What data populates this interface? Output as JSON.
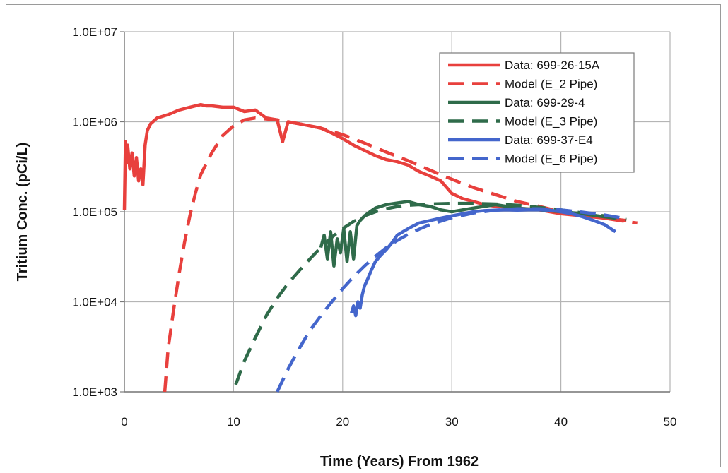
{
  "chart_data": {
    "type": "line",
    "xlabel": "Time (Years)  From 1962",
    "ylabel": "Tritium Conc. (pCi/L)",
    "xlim": [
      0,
      50
    ],
    "ylim": [
      1000,
      10000000
    ],
    "yscale": "log",
    "x_ticks": [
      0,
      10,
      20,
      30,
      40,
      50
    ],
    "x_tick_labels": [
      "0",
      "10",
      "20",
      "30",
      "40",
      "50"
    ],
    "y_ticks": [
      1000,
      10000,
      100000,
      1000000,
      10000000
    ],
    "y_tick_labels": [
      "1.0E+03",
      "1.0E+04",
      "1.0E+05",
      "1.0E+06",
      "1.0E+07"
    ],
    "grid": true,
    "legend_position": "top-right",
    "series": [
      {
        "name": "Data: 699-26-15A",
        "color": "#e8403d",
        "style": "solid",
        "x": [
          0,
          0.1,
          0.2,
          0.3,
          0.5,
          0.7,
          0.9,
          1.1,
          1.3,
          1.5,
          1.7,
          1.9,
          2.1,
          2.4,
          3.0,
          4.0,
          5.0,
          6.0,
          7.0,
          7.5,
          8.0,
          9.0,
          10.0,
          11.0,
          12.0,
          13.0,
          14.0,
          14.5,
          15.0,
          16.0,
          17.0,
          18.0,
          19.0,
          20.0,
          21.0,
          22.0,
          23.0,
          24.0,
          25.0,
          26.0,
          27.0,
          28.0,
          29.0,
          30.0,
          31.0,
          32.0,
          33.0,
          34.0,
          36.0,
          38.0,
          40.0,
          42.0,
          44.0,
          46.0
        ],
        "y": [
          105000,
          600000,
          350000,
          550000,
          300000,
          450000,
          250000,
          400000,
          220000,
          300000,
          200000,
          550000,
          800000,
          950000,
          1100000,
          1200000,
          1350000,
          1450000,
          1550000,
          1500000,
          1500000,
          1450000,
          1450000,
          1300000,
          1350000,
          1100000,
          1050000,
          600000,
          1000000,
          950000,
          900000,
          850000,
          750000,
          650000,
          550000,
          480000,
          420000,
          380000,
          360000,
          330000,
          280000,
          250000,
          220000,
          160000,
          140000,
          130000,
          120000,
          115000,
          110000,
          105000,
          95000,
          90000,
          85000,
          80000
        ]
      },
      {
        "name": "Model (E_2 Pipe)",
        "color": "#e8403d",
        "style": "dashed",
        "x": [
          3.7,
          4.0,
          4.5,
          5.0,
          5.5,
          6.0,
          6.5,
          7.0,
          8.0,
          9.0,
          10.0,
          11.0,
          12.0,
          14.0,
          16.0,
          18.0,
          20.0,
          22.0,
          24.0,
          26.0,
          28.0,
          30.0,
          32.0,
          34.0,
          36.0,
          38.0,
          40.0,
          42.0,
          44.0,
          46.0,
          47.0
        ],
        "y": [
          1000,
          3000,
          8000,
          20000,
          45000,
          90000,
          160000,
          260000,
          450000,
          700000,
          900000,
          1050000,
          1100000,
          1050000,
          950000,
          850000,
          720000,
          580000,
          460000,
          370000,
          290000,
          230000,
          185000,
          155000,
          130000,
          115000,
          100000,
          92000,
          85000,
          78000,
          75000
        ]
      },
      {
        "name": "Data: 699-29-4",
        "color": "#2f6b4a",
        "style": "solid",
        "x": [
          18.0,
          18.3,
          18.6,
          18.9,
          19.2,
          19.5,
          19.8,
          20.1,
          20.4,
          20.7,
          21.0,
          21.3,
          21.6,
          22.0,
          22.5,
          23.0,
          23.5,
          24.0,
          25.0,
          26.0,
          27.0,
          28.0,
          29.0,
          30.0,
          31.0,
          32.0,
          33.0,
          34.0,
          36.0,
          38.0,
          40.0,
          42.0,
          44.0,
          45.0
        ],
        "y": [
          40000,
          55000,
          30000,
          60000,
          25000,
          50000,
          35000,
          65000,
          28000,
          60000,
          30000,
          70000,
          80000,
          90000,
          100000,
          110000,
          115000,
          120000,
          125000,
          130000,
          120000,
          115000,
          105000,
          100000,
          105000,
          110000,
          115000,
          120000,
          110000,
          105000,
          100000,
          95000,
          88000,
          85000
        ]
      },
      {
        "name": "Model (E_3 Pipe)",
        "color": "#2f6b4a",
        "style": "dashed",
        "x": [
          10.2,
          11.0,
          12.0,
          13.0,
          14.0,
          15.0,
          16.0,
          17.0,
          18.0,
          19.0,
          20.0,
          21.0,
          22.0,
          23.0,
          24.0,
          25.0,
          26.0,
          28.0,
          30.0,
          32.0,
          34.0,
          36.0,
          38.0,
          40.0,
          42.0,
          44.0,
          46.0
        ],
        "y": [
          1200,
          2200,
          4000,
          7000,
          11000,
          16000,
          22000,
          30000,
          40000,
          52000,
          65000,
          78000,
          90000,
          100000,
          108000,
          114000,
          118000,
          122000,
          124000,
          124000,
          122000,
          118000,
          112000,
          105000,
          97000,
          90000,
          82000
        ]
      },
      {
        "name": "Data: 699-37-E4",
        "color": "#4466cc",
        "style": "solid",
        "x": [
          20.8,
          21.0,
          21.2,
          21.4,
          21.6,
          21.8,
          22.0,
          22.3,
          22.6,
          23.0,
          23.5,
          24.0,
          24.5,
          25.0,
          26.0,
          27.0,
          28.0,
          29.0,
          30.0,
          31.0,
          32.0,
          33.0,
          34.0,
          35.0,
          36.0,
          37.0,
          38.0,
          39.0,
          40.0,
          41.0,
          42.0,
          43.0,
          44.0,
          45.0
        ],
        "y": [
          7500,
          9000,
          7000,
          10000,
          8500,
          12000,
          15000,
          18000,
          22000,
          28000,
          33000,
          38000,
          45000,
          55000,
          65000,
          75000,
          80000,
          85000,
          90000,
          95000,
          100000,
          103000,
          104000,
          105000,
          104000,
          105000,
          105000,
          104000,
          100000,
          95000,
          88000,
          80000,
          72000,
          60000
        ]
      },
      {
        "name": "Model (E_6 Pipe)",
        "color": "#4466cc",
        "style": "dashed",
        "x": [
          14.0,
          15.0,
          16.0,
          17.0,
          18.0,
          19.0,
          20.0,
          21.0,
          22.0,
          23.0,
          24.0,
          25.0,
          26.0,
          27.0,
          28.0,
          30.0,
          32.0,
          34.0,
          36.0,
          38.0,
          40.0,
          42.0,
          44.0,
          46.0
        ],
        "y": [
          1000,
          1800,
          3000,
          4800,
          7000,
          10000,
          14000,
          19000,
          25000,
          32000,
          40000,
          48000,
          56000,
          64000,
          72000,
          86000,
          97000,
          104000,
          108000,
          108000,
          105000,
          99000,
          92000,
          84000
        ]
      }
    ]
  }
}
